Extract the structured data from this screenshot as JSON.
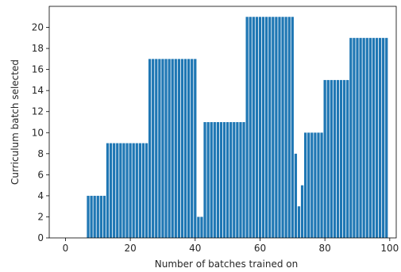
{
  "chart_data": {
    "type": "bar",
    "xlabel": "Number of batches trained on",
    "ylabel": "Curriculum batch selected",
    "xlim": [
      -5,
      102
    ],
    "ylim": [
      0,
      22
    ],
    "xticks": [
      0,
      20,
      40,
      60,
      80,
      100
    ],
    "yticks": [
      0,
      2,
      4,
      6,
      8,
      10,
      12,
      14,
      16,
      18,
      20
    ],
    "bar_color": "#1f77b4",
    "grid": false,
    "legend": "none",
    "x": [
      0,
      1,
      2,
      3,
      4,
      5,
      6,
      7,
      8,
      9,
      10,
      11,
      12,
      13,
      14,
      15,
      16,
      17,
      18,
      19,
      20,
      21,
      22,
      23,
      24,
      25,
      26,
      27,
      28,
      29,
      30,
      31,
      32,
      33,
      34,
      35,
      36,
      37,
      38,
      39,
      40,
      41,
      42,
      43,
      44,
      45,
      46,
      47,
      48,
      49,
      50,
      51,
      52,
      53,
      54,
      55,
      56,
      57,
      58,
      59,
      60,
      61,
      62,
      63,
      64,
      65,
      66,
      67,
      68,
      69,
      70,
      71,
      72,
      73,
      74,
      75,
      76,
      77,
      78,
      79,
      80,
      81,
      82,
      83,
      84,
      85,
      86,
      87,
      88,
      89,
      90,
      91,
      92,
      93,
      94,
      95,
      96,
      97,
      98,
      99
    ],
    "values": [
      0,
      0,
      0,
      0,
      0,
      0,
      0,
      4,
      4,
      4,
      4,
      4,
      4,
      9,
      9,
      9,
      9,
      9,
      9,
      9,
      9,
      9,
      9,
      9,
      9,
      9,
      17,
      17,
      17,
      17,
      17,
      17,
      17,
      17,
      17,
      17,
      17,
      17,
      17,
      17,
      17,
      2,
      2,
      11,
      11,
      11,
      11,
      11,
      11,
      11,
      11,
      11,
      11,
      11,
      11,
      11,
      21,
      21,
      21,
      21,
      21,
      21,
      21,
      21,
      21,
      21,
      21,
      21,
      21,
      21,
      21,
      8,
      3,
      5,
      10,
      10,
      10,
      10,
      10,
      10,
      15,
      15,
      15,
      15,
      15,
      15,
      15,
      15,
      19,
      19,
      19,
      19,
      19,
      19,
      19,
      19,
      19,
      19,
      19,
      19
    ]
  }
}
